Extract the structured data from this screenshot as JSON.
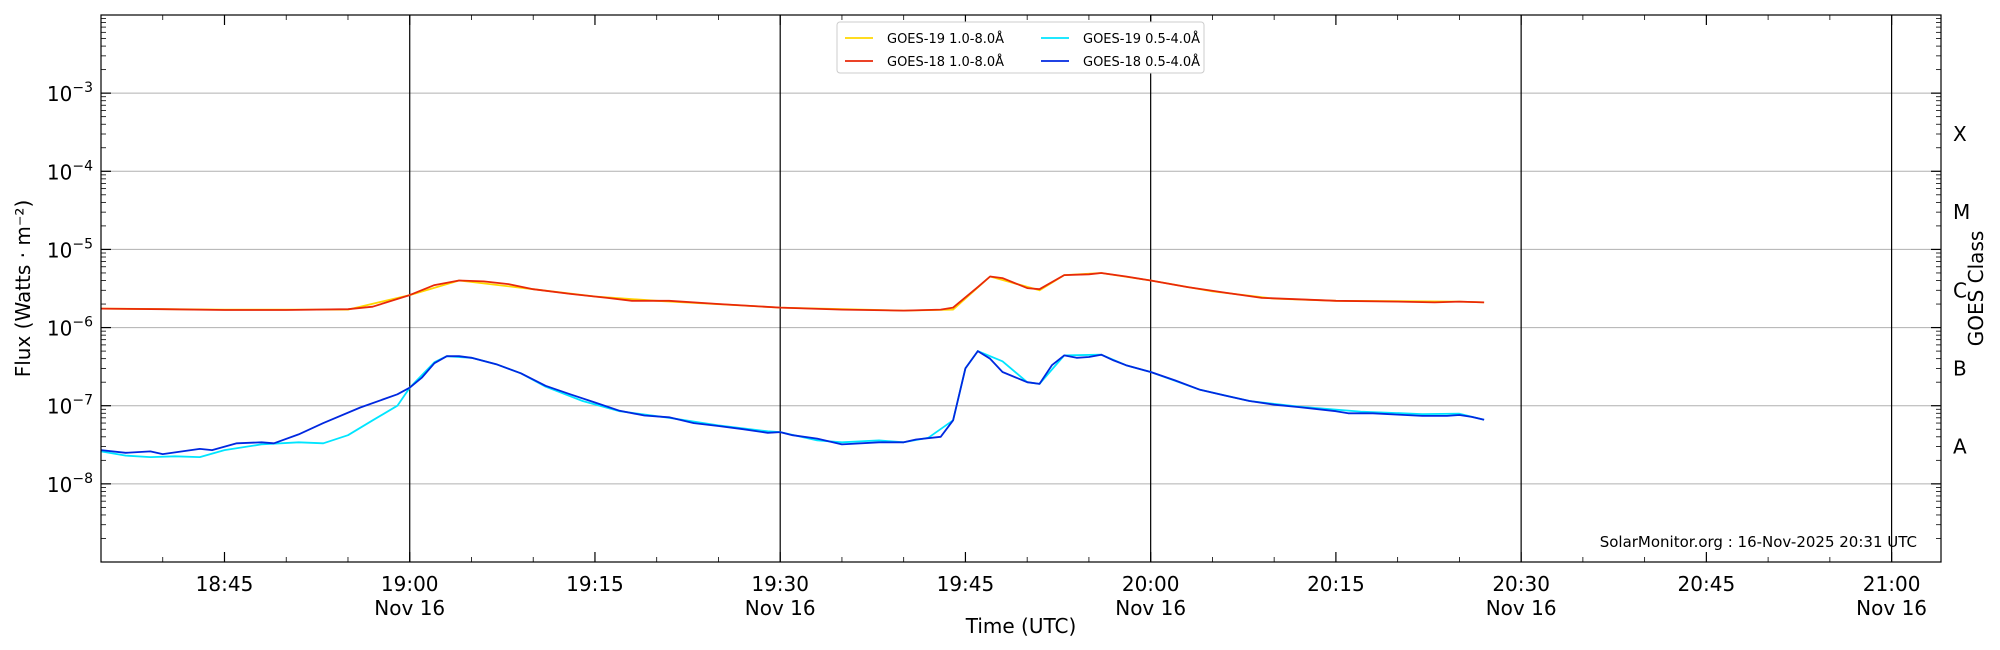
{
  "chart_data": {
    "type": "line",
    "xlabel": "Time (UTC)",
    "ylabel": "Flux (Watts · m⁻²)",
    "y2label": "GOES Class",
    "credit": "SolarMonitor.org : 16-Nov-2025 20:31 UTC",
    "y_scale": "log",
    "ylim": [
      1e-09,
      0.01
    ],
    "xlim": [
      "18:35",
      "21:04"
    ],
    "grid": "horizontal",
    "legend_position": "top-center",
    "x_ticks": [
      {
        "t": "18:45",
        "label": "18:45",
        "sub": ""
      },
      {
        "t": "19:00",
        "label": "19:00",
        "sub": "Nov 16"
      },
      {
        "t": "19:15",
        "label": "19:15",
        "sub": ""
      },
      {
        "t": "19:30",
        "label": "19:30",
        "sub": "Nov 16"
      },
      {
        "t": "19:45",
        "label": "19:45",
        "sub": ""
      },
      {
        "t": "20:00",
        "label": "20:00",
        "sub": "Nov 16"
      },
      {
        "t": "20:15",
        "label": "20:15",
        "sub": ""
      },
      {
        "t": "20:30",
        "label": "20:30",
        "sub": "Nov 16"
      },
      {
        "t": "20:45",
        "label": "20:45",
        "sub": ""
      },
      {
        "t": "21:00",
        "label": "21:00",
        "sub": "Nov 16"
      }
    ],
    "y_ticks": [
      {
        "value": 1e-08,
        "base": "10",
        "exp": "−8"
      },
      {
        "value": 1e-07,
        "base": "10",
        "exp": "−7"
      },
      {
        "value": 1e-06,
        "base": "10",
        "exp": "−6"
      },
      {
        "value": 1e-05,
        "base": "10",
        "exp": "−5"
      },
      {
        "value": 0.0001,
        "base": "10",
        "exp": "−4"
      },
      {
        "value": 0.001,
        "base": "10",
        "exp": "−3"
      }
    ],
    "class_labels": [
      {
        "value": 3e-08,
        "label": "A"
      },
      {
        "value": 3e-07,
        "label": "B"
      },
      {
        "value": 3e-06,
        "label": "C"
      },
      {
        "value": 3e-05,
        "label": "M"
      },
      {
        "value": 0.0003,
        "label": "X"
      }
    ],
    "series": [
      {
        "name": "GOES-19 1.0-8.0Å",
        "color": "#ffd700",
        "points": [
          [
            "18:35",
            1.75e-06
          ],
          [
            "18:45",
            1.7e-06
          ],
          [
            "18:50",
            1.7e-06
          ],
          [
            "18:55",
            1.7e-06
          ],
          [
            "19:00",
            2.6e-06
          ],
          [
            "19:04",
            4e-06
          ],
          [
            "19:10",
            3.1e-06
          ],
          [
            "19:15",
            2.5e-06
          ],
          [
            "19:20",
            2.2e-06
          ],
          [
            "19:30",
            1.8e-06
          ],
          [
            "19:40",
            1.65e-06
          ],
          [
            "19:44",
            1.7e-06
          ],
          [
            "19:47",
            4.5e-06
          ],
          [
            "19:51",
            3e-06
          ],
          [
            "19:53",
            4.7e-06
          ],
          [
            "19:56",
            5e-06
          ],
          [
            "20:00",
            4e-06
          ],
          [
            "20:05",
            2.9e-06
          ],
          [
            "20:10",
            2.35e-06
          ],
          [
            "20:15",
            2.2e-06
          ],
          [
            "20:25",
            2.15e-06
          ],
          [
            "20:27",
            2.1e-06
          ]
        ]
      },
      {
        "name": "GOES-19 0.5-4.0Å",
        "color": "#00e5ff",
        "points": [
          [
            "18:35",
            2.6e-08
          ],
          [
            "18:37",
            2.3e-08
          ],
          [
            "18:39",
            2.2e-08
          ],
          [
            "18:41",
            2.25e-08
          ],
          [
            "18:43",
            2.2e-08
          ],
          [
            "18:45",
            2.7e-08
          ],
          [
            "18:48",
            3.2e-08
          ],
          [
            "18:51",
            3.4e-08
          ],
          [
            "18:53",
            3.3e-08
          ],
          [
            "18:55",
            4.2e-08
          ],
          [
            "18:57",
            6.5e-08
          ],
          [
            "18:59",
            1e-07
          ],
          [
            "19:00",
            1.7e-07
          ],
          [
            "19:02",
            3.6e-07
          ],
          [
            "19:03",
            4.3e-07
          ],
          [
            "19:05",
            4.1e-07
          ],
          [
            "19:07",
            3.4e-07
          ],
          [
            "19:09",
            2.6e-07
          ],
          [
            "19:11",
            1.75e-07
          ],
          [
            "19:14",
            1.15e-07
          ],
          [
            "19:17",
            8.5e-08
          ],
          [
            "19:21",
            7e-08
          ],
          [
            "19:25",
            5.6e-08
          ],
          [
            "19:29",
            4.7e-08
          ],
          [
            "19:30",
            4.6e-08
          ],
          [
            "19:33",
            3.6e-08
          ],
          [
            "19:35",
            3.4e-08
          ],
          [
            "19:38",
            3.6e-08
          ],
          [
            "19:40",
            3.4e-08
          ],
          [
            "19:42",
            3.9e-08
          ],
          [
            "19:44",
            6.5e-08
          ],
          [
            "19:45",
            3e-07
          ],
          [
            "19:46",
            5e-07
          ],
          [
            "19:48",
            3.7e-07
          ],
          [
            "19:50",
            2e-07
          ],
          [
            "19:51",
            1.9e-07
          ],
          [
            "19:53",
            4.4e-07
          ],
          [
            "19:56",
            4.5e-07
          ],
          [
            "19:58",
            3.3e-07
          ],
          [
            "20:00",
            2.7e-07
          ],
          [
            "20:04",
            1.6e-07
          ],
          [
            "20:08",
            1.15e-07
          ],
          [
            "20:12",
            9.7e-08
          ],
          [
            "20:17",
            8.4e-08
          ],
          [
            "20:22",
            7.8e-08
          ],
          [
            "20:25",
            7.9e-08
          ],
          [
            "20:27",
            6.6e-08
          ]
        ]
      },
      {
        "name": "GOES-18 1.0-8.0Å",
        "color": "#e8280a",
        "points": [
          [
            "18:35",
            1.75e-06
          ],
          [
            "18:40",
            1.72e-06
          ],
          [
            "18:45",
            1.68e-06
          ],
          [
            "18:50",
            1.68e-06
          ],
          [
            "18:55",
            1.72e-06
          ],
          [
            "18:57",
            1.85e-06
          ],
          [
            "19:00",
            2.6e-06
          ],
          [
            "19:02",
            3.5e-06
          ],
          [
            "19:04",
            4e-06
          ],
          [
            "19:06",
            3.9e-06
          ],
          [
            "19:08",
            3.6e-06
          ],
          [
            "19:10",
            3.1e-06
          ],
          [
            "19:13",
            2.7e-06
          ],
          [
            "19:16",
            2.4e-06
          ],
          [
            "19:18",
            2.2e-06
          ],
          [
            "19:21",
            2.2e-06
          ],
          [
            "19:25",
            2e-06
          ],
          [
            "19:30",
            1.8e-06
          ],
          [
            "19:35",
            1.7e-06
          ],
          [
            "19:40",
            1.65e-06
          ],
          [
            "19:43",
            1.7e-06
          ],
          [
            "19:44",
            1.8e-06
          ],
          [
            "19:46",
            3.3e-06
          ],
          [
            "19:47",
            4.5e-06
          ],
          [
            "19:48",
            4.3e-06
          ],
          [
            "19:50",
            3.2e-06
          ],
          [
            "19:51",
            3.1e-06
          ],
          [
            "19:53",
            4.7e-06
          ],
          [
            "19:55",
            4.8e-06
          ],
          [
            "19:56",
            5e-06
          ],
          [
            "19:58",
            4.5e-06
          ],
          [
            "20:00",
            4e-06
          ],
          [
            "20:03",
            3.3e-06
          ],
          [
            "20:06",
            2.8e-06
          ],
          [
            "20:09",
            2.4e-06
          ],
          [
            "20:12",
            2.3e-06
          ],
          [
            "20:15",
            2.2e-06
          ],
          [
            "20:20",
            2.15e-06
          ],
          [
            "20:23",
            2.1e-06
          ],
          [
            "20:25",
            2.15e-06
          ],
          [
            "20:27",
            2.1e-06
          ]
        ]
      },
      {
        "name": "GOES-18 0.5-4.0Å",
        "color": "#0028e0",
        "points": [
          [
            "18:35",
            2.7e-08
          ],
          [
            "18:37",
            2.5e-08
          ],
          [
            "18:39",
            2.6e-08
          ],
          [
            "18:40",
            2.4e-08
          ],
          [
            "18:43",
            2.8e-08
          ],
          [
            "18:44",
            2.7e-08
          ],
          [
            "18:46",
            3.3e-08
          ],
          [
            "18:48",
            3.4e-08
          ],
          [
            "18:49",
            3.3e-08
          ],
          [
            "18:51",
            4.3e-08
          ],
          [
            "18:53",
            6e-08
          ],
          [
            "18:56",
            9.5e-08
          ],
          [
            "18:59",
            1.4e-07
          ],
          [
            "19:00",
            1.7e-07
          ],
          [
            "19:01",
            2.3e-07
          ],
          [
            "19:02",
            3.5e-07
          ],
          [
            "19:03",
            4.3e-07
          ],
          [
            "19:04",
            4.3e-07
          ],
          [
            "19:05",
            4.1e-07
          ],
          [
            "19:07",
            3.4e-07
          ],
          [
            "19:09",
            2.6e-07
          ],
          [
            "19:11",
            1.8e-07
          ],
          [
            "19:13",
            1.4e-07
          ],
          [
            "19:15",
            1.1e-07
          ],
          [
            "19:17",
            8.6e-08
          ],
          [
            "19:19",
            7.5e-08
          ],
          [
            "19:21",
            7.1e-08
          ],
          [
            "19:23",
            6e-08
          ],
          [
            "19:25",
            5.5e-08
          ],
          [
            "19:27",
            5e-08
          ],
          [
            "19:29",
            4.5e-08
          ],
          [
            "19:30",
            4.6e-08
          ],
          [
            "19:31",
            4.2e-08
          ],
          [
            "19:33",
            3.8e-08
          ],
          [
            "19:35",
            3.2e-08
          ],
          [
            "19:38",
            3.4e-08
          ],
          [
            "19:40",
            3.4e-08
          ],
          [
            "19:41",
            3.7e-08
          ],
          [
            "19:43",
            4e-08
          ],
          [
            "19:44",
            6.5e-08
          ],
          [
            "19:45",
            3e-07
          ],
          [
            "19:46",
            5e-07
          ],
          [
            "19:47",
            4e-07
          ],
          [
            "19:48",
            2.7e-07
          ],
          [
            "19:50",
            2e-07
          ],
          [
            "19:51",
            1.9e-07
          ],
          [
            "19:52",
            3.3e-07
          ],
          [
            "19:53",
            4.4e-07
          ],
          [
            "19:54",
            4.1e-07
          ],
          [
            "19:55",
            4.2e-07
          ],
          [
            "19:56",
            4.5e-07
          ],
          [
            "19:57",
            3.8e-07
          ],
          [
            "19:58",
            3.3e-07
          ],
          [
            "20:00",
            2.7e-07
          ],
          [
            "20:02",
            2.1e-07
          ],
          [
            "20:04",
            1.6e-07
          ],
          [
            "20:06",
            1.35e-07
          ],
          [
            "20:08",
            1.15e-07
          ],
          [
            "20:10",
            1.03e-07
          ],
          [
            "20:12",
            9.6e-08
          ],
          [
            "20:15",
            8.5e-08
          ],
          [
            "20:16",
            8e-08
          ],
          [
            "20:18",
            8e-08
          ],
          [
            "20:20",
            7.7e-08
          ],
          [
            "20:22",
            7.4e-08
          ],
          [
            "20:24",
            7.4e-08
          ],
          [
            "20:25",
            7.6e-08
          ],
          [
            "20:26",
            7.2e-08
          ],
          [
            "20:27",
            6.6e-08
          ]
        ]
      }
    ],
    "legend_order": [
      "GOES-19 1.0-8.0Å",
      "GOES-19 0.5-4.0Å",
      "GOES-18 1.0-8.0Å",
      "GOES-18 0.5-4.0Å"
    ]
  }
}
